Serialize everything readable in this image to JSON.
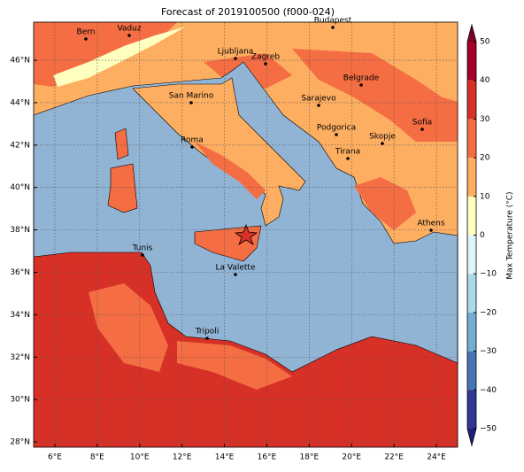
{
  "title": "Forecast of 2019100500 (f000-024)",
  "map": {
    "xlim": [
      5,
      25
    ],
    "ylim": [
      27.75,
      47.8
    ],
    "grid": true,
    "xticks": [
      {
        "value": 6,
        "label": "6°E"
      },
      {
        "value": 8,
        "label": "8°E"
      },
      {
        "value": 10,
        "label": "10°E"
      },
      {
        "value": 12,
        "label": "12°E"
      },
      {
        "value": 14,
        "label": "14°E"
      },
      {
        "value": 16,
        "label": "16°E"
      },
      {
        "value": 18,
        "label": "18°E"
      },
      {
        "value": 20,
        "label": "20°E"
      },
      {
        "value": 22,
        "label": "22°E"
      },
      {
        "value": 24,
        "label": "24°E"
      }
    ],
    "yticks": [
      {
        "value": 28,
        "label": "28°N"
      },
      {
        "value": 30,
        "label": "30°N"
      },
      {
        "value": 32,
        "label": "32°N"
      },
      {
        "value": 34,
        "label": "34°N"
      },
      {
        "value": 36,
        "label": "36°N"
      },
      {
        "value": 38,
        "label": "38°N"
      },
      {
        "value": 40,
        "label": "40°N"
      },
      {
        "value": 42,
        "label": "42°N"
      },
      {
        "value": 44,
        "label": "44°N"
      },
      {
        "value": 46,
        "label": "46°N"
      }
    ],
    "cities": [
      "Bern",
      "Vaduz",
      "Budapest",
      "Ljubljana",
      "Zagreb",
      "Belgrade",
      "San Marino",
      "Sarajevo",
      "Sofia",
      "Podgorica",
      "Skopje",
      "Roma",
      "Tirana",
      "Athens",
      "Tunis",
      "La Valette",
      "Tripoli"
    ]
  },
  "colorbar": {
    "label": "Max Temperature (°C)",
    "lim": [
      -50,
      50
    ],
    "ticks": [
      {
        "value": -50,
        "label": "−50"
      },
      {
        "value": -40,
        "label": "−40"
      },
      {
        "value": -30,
        "label": "−30"
      },
      {
        "value": -20,
        "label": "−20"
      },
      {
        "value": -10,
        "label": "−10"
      },
      0,
      10,
      20,
      30,
      40,
      50
    ],
    "colors": [
      "#313695",
      "#4575b4",
      "#74add1",
      "#abd9e9",
      "#e0f3f8",
      "#ffffbf",
      "#fdae61",
      "#f46d43",
      "#d73027",
      "#a50026"
    ],
    "under_color": "#1f1f75",
    "over_color": "#7f0026"
  }
}
